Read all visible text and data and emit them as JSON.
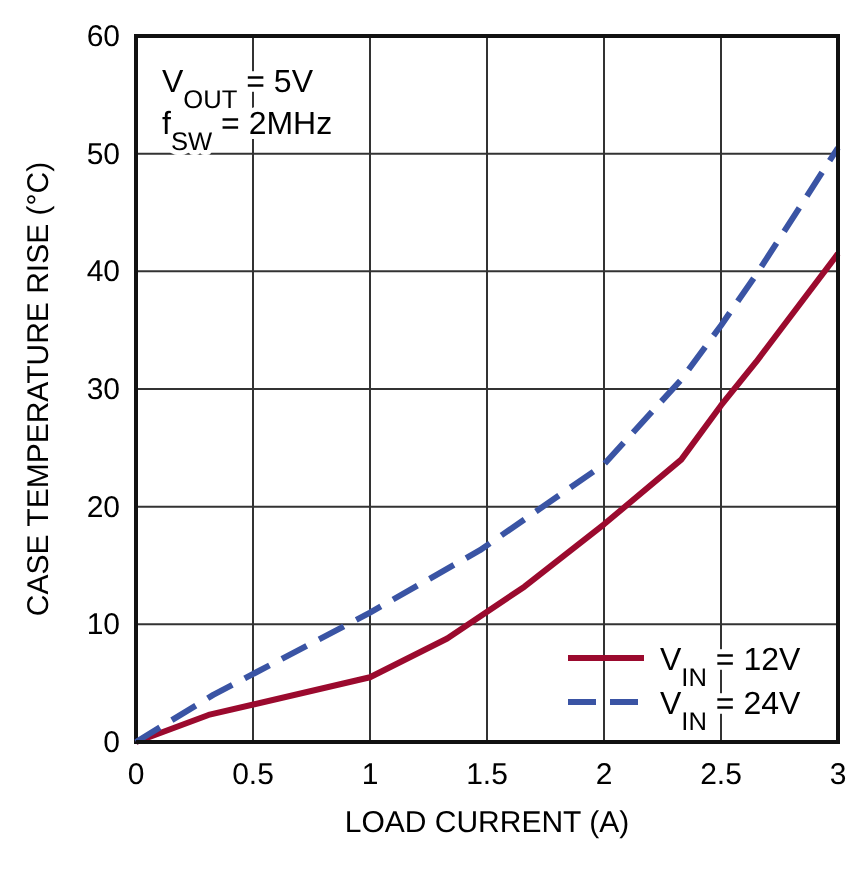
{
  "chart_data": {
    "type": "line",
    "xlabel": "LOAD CURRENT (A)",
    "ylabel": "CASE TEMPERATURE RISE (°C)",
    "annotations": [
      "V$_{OUT}$ = 5V",
      "f$_{SW}$ = 2MHz"
    ],
    "xlim": [
      0,
      3
    ],
    "xticks": [
      0,
      0.5,
      1,
      1.5,
      2,
      2.5,
      3
    ],
    "ylim": [
      0,
      60
    ],
    "yticks": [
      0,
      10,
      20,
      30,
      40,
      50,
      60
    ],
    "grid": true,
    "legend": "bottom right",
    "series": [
      {
        "name": "V$_{IN}$ = 12V",
        "color": "#9b0a2e",
        "line_style": "solid",
        "x": [
          0,
          0.31,
          1,
          1.33,
          1.66,
          2,
          2.33,
          2.5,
          2.65,
          3
        ],
        "values": [
          0,
          2.3,
          5.5,
          8.8,
          13.2,
          18.5,
          24,
          28.6,
          32.3,
          41.5
        ]
      },
      {
        "name": "V$_{IN}$ = 24V",
        "color": "#3a54a4",
        "line_style": "dashed",
        "x": [
          0,
          0.33,
          1,
          1.47,
          2,
          2.33,
          2.5,
          2.65,
          3
        ],
        "values": [
          0,
          4,
          11,
          16.3,
          23.6,
          30.8,
          35.4,
          39.7,
          50.5
        ]
      }
    ]
  }
}
